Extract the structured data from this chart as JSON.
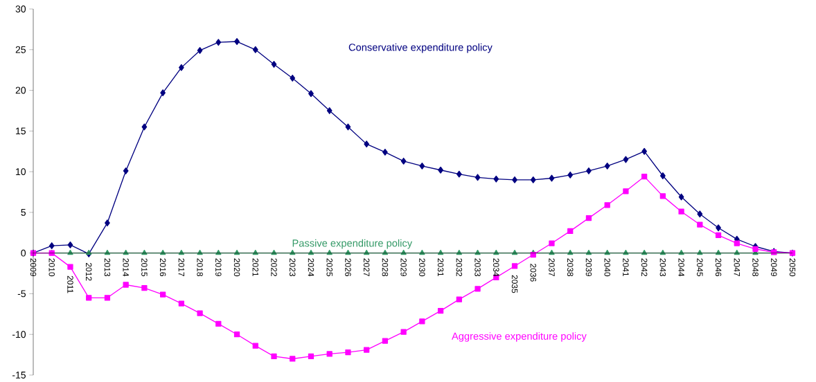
{
  "chart_data": {
    "type": "line",
    "categories": [
      "2009",
      "2010",
      "2011",
      "2012",
      "2013",
      "2014",
      "2015",
      "2016",
      "2017",
      "2018",
      "2019",
      "2020",
      "2021",
      "2022",
      "2023",
      "2024",
      "2025",
      "2026",
      "2027",
      "2028",
      "2029",
      "2030",
      "2031",
      "2032",
      "2033",
      "2034",
      "2035",
      "2036",
      "2037",
      "2038",
      "2039",
      "2040",
      "2041",
      "2042",
      "2043",
      "2044",
      "2045",
      "2046",
      "2047",
      "2048",
      "2049",
      "2050"
    ],
    "series": [
      {
        "name": "Conservative expenditure policy",
        "color": "#000080",
        "marker": "diamond",
        "values": [
          0,
          0.9,
          1.0,
          -0.1,
          3.7,
          10.1,
          15.5,
          19.7,
          22.8,
          24.9,
          25.9,
          26.0,
          25.0,
          23.2,
          21.5,
          19.6,
          17.5,
          15.5,
          13.4,
          12.4,
          11.3,
          10.7,
          10.2,
          9.7,
          9.3,
          9.1,
          9.0,
          9.0,
          9.2,
          9.6,
          10.1,
          10.7,
          11.5,
          12.5,
          9.5,
          6.9,
          4.8,
          3.1,
          1.7,
          0.8,
          0.2,
          0
        ]
      },
      {
        "name": "Passive expenditure policy",
        "color": "#339966",
        "marker": "triangle",
        "values": [
          0,
          0,
          0,
          0,
          0,
          0,
          0,
          0,
          0,
          0,
          0,
          0,
          0,
          0,
          0,
          0,
          0,
          0,
          0,
          0,
          0,
          0,
          0,
          0,
          0,
          0,
          0,
          0,
          0,
          0,
          0,
          0,
          0,
          0,
          0,
          0,
          0,
          0,
          0,
          0,
          0,
          0
        ]
      },
      {
        "name": "Aggressive expenditure policy",
        "color": "#ff00ff",
        "marker": "square",
        "values": [
          0,
          0,
          -1.7,
          -5.5,
          -5.5,
          -3.9,
          -4.3,
          -5.1,
          -6.2,
          -7.4,
          -8.7,
          -10.0,
          -11.4,
          -12.7,
          -13.0,
          -12.7,
          -12.4,
          -12.2,
          -11.9,
          -10.8,
          -9.7,
          -8.4,
          -7.1,
          -5.7,
          -4.4,
          -3.0,
          -1.6,
          -0.2,
          1.2,
          2.7,
          4.3,
          5.9,
          7.6,
          9.4,
          7.0,
          5.1,
          3.5,
          2.2,
          1.2,
          0.5,
          0.1,
          0
        ]
      }
    ],
    "ylim": [
      -15,
      30
    ],
    "yticks": [
      -15,
      -10,
      -5,
      0,
      5,
      10,
      15,
      20,
      25,
      30
    ],
    "grid": false,
    "line_style": "solid"
  }
}
